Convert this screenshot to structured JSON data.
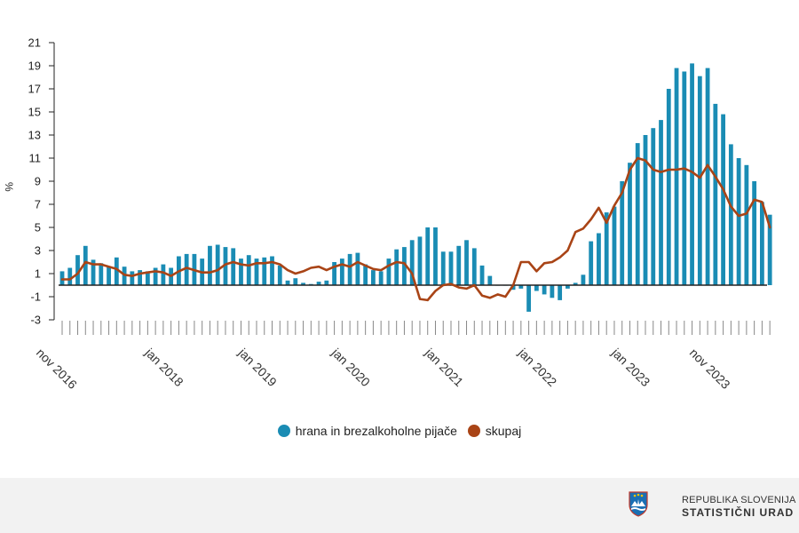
{
  "chart_data": {
    "type": "bar+line",
    "title": "",
    "xlabel": "",
    "ylabel": "%",
    "ylim": [
      -3,
      21
    ],
    "yticks": [
      -3,
      -1,
      1,
      3,
      5,
      7,
      9,
      11,
      13,
      15,
      17,
      19,
      21
    ],
    "x_tick_labels": [
      "nov 2016",
      "jan 2018",
      "jan 2019",
      "jan 2020",
      "jan 2021",
      "jan 2022",
      "jan 2023",
      "nov 2023"
    ],
    "start_month": "nov 2016",
    "series": [
      {
        "name": "hrana in brezalkoholne pijače",
        "type": "bar",
        "color": "#1a8cb4",
        "values": [
          1.2,
          1.5,
          2.6,
          3.4,
          2.2,
          1.9,
          1.6,
          2.4,
          1.6,
          1.2,
          1.3,
          1.2,
          1.5,
          1.8,
          1.5,
          2.5,
          2.7,
          2.7,
          2.3,
          3.4,
          3.5,
          3.3,
          3.2,
          2.3,
          2.6,
          2.3,
          2.4,
          2.5,
          1.7,
          0.4,
          0.6,
          0.2,
          0.1,
          0.3,
          0.4,
          2.0,
          2.3,
          2.7,
          2.8,
          1.8,
          1.3,
          1.2,
          2.3,
          3.1,
          3.3,
          3.9,
          4.2,
          5.0,
          5.0,
          2.9,
          2.9,
          3.4,
          3.9,
          3.2,
          1.7,
          0.8,
          0.0,
          0.0,
          -0.4,
          -0.3,
          -2.3,
          -0.5,
          -0.8,
          -1.1,
          -1.3,
          -0.3,
          0.2,
          0.9,
          3.8,
          4.5,
          6.3,
          6.8,
          9.0,
          10.6,
          12.3,
          13.0,
          13.6,
          14.3,
          17.0,
          18.8,
          18.5,
          19.2,
          18.1,
          18.8,
          15.7,
          14.8,
          12.2,
          11.0,
          10.4,
          9.0,
          7.2,
          6.1
        ]
      },
      {
        "name": "skupaj",
        "type": "line",
        "color": "#a94416",
        "values": [
          0.5,
          0.5,
          1.0,
          2.0,
          1.8,
          1.8,
          1.6,
          1.4,
          0.9,
          0.8,
          1.0,
          1.1,
          1.2,
          1.1,
          0.8,
          1.2,
          1.5,
          1.3,
          1.1,
          1.1,
          1.3,
          1.8,
          2.0,
          1.8,
          1.7,
          1.9,
          1.9,
          2.0,
          1.8,
          1.3,
          1.0,
          1.2,
          1.5,
          1.6,
          1.3,
          1.6,
          1.8,
          1.6,
          2.0,
          1.7,
          1.4,
          1.3,
          1.7,
          2.0,
          1.9,
          1.0,
          -1.2,
          -1.3,
          -0.5,
          0.0,
          0.1,
          -0.2,
          -0.3,
          0.0,
          -0.9,
          -1.1,
          -0.8,
          -1.0,
          0.0,
          2.0,
          2.0,
          1.2,
          1.9,
          2.0,
          2.4,
          3.0,
          4.6,
          4.9,
          5.7,
          6.7,
          5.4,
          6.9,
          8.0,
          10.0,
          11.0,
          10.8,
          10.0,
          9.8,
          10.0,
          10.0,
          10.1,
          9.8,
          9.3,
          10.4,
          9.4,
          8.3,
          6.8,
          6.0,
          6.2,
          7.4,
          7.2,
          5.0
        ]
      }
    ],
    "legend_position": "bottom-center"
  },
  "legend": {
    "items": [
      {
        "label": "hrana in brezalkoholne pijače",
        "color": "#1a8cb4"
      },
      {
        "label": "skupaj",
        "color": "#a94416"
      }
    ]
  },
  "footer": {
    "line1": "REPUBLIKA SLOVENIJA",
    "line2": "STATISTIČNI URAD"
  }
}
